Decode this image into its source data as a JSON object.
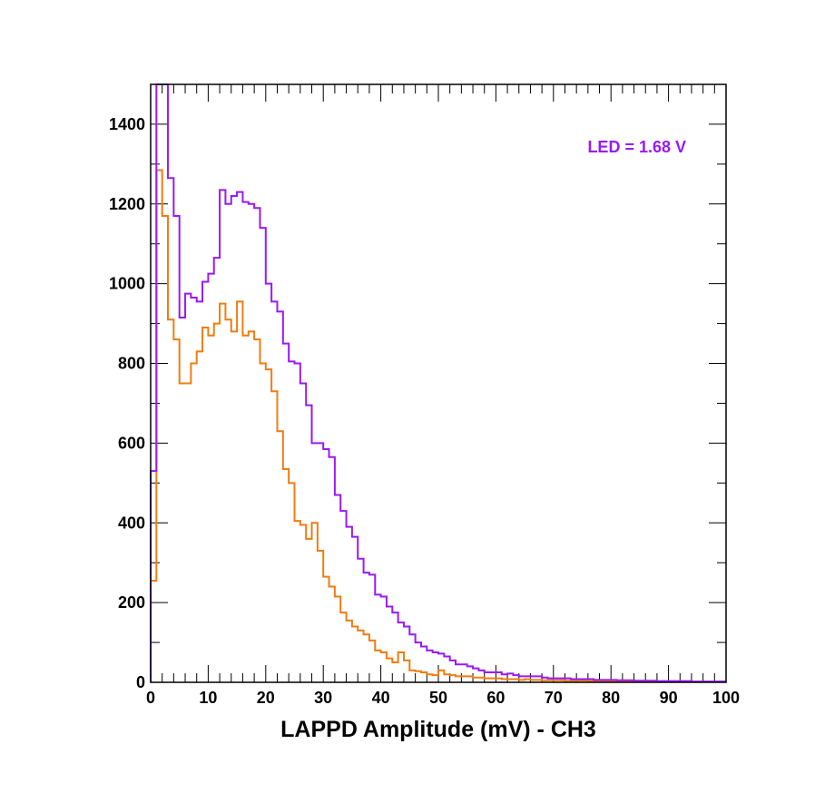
{
  "chart_data": {
    "type": "histogram",
    "title": "",
    "xlabel": "LAPPD Amplitude (mV) - CH3",
    "ylabel": "",
    "xlim": [
      0,
      100
    ],
    "ylim": [
      0,
      1500
    ],
    "bin_width": 1,
    "x_ticks": [
      0,
      10,
      20,
      30,
      40,
      50,
      60,
      70,
      80,
      90,
      100
    ],
    "x_tick_labels": [
      "0",
      "10",
      "20",
      "30",
      "40",
      "50",
      "60",
      "70",
      "80",
      "90",
      "100"
    ],
    "y_ticks": [
      0,
      200,
      400,
      600,
      800,
      1000,
      1200,
      1400
    ],
    "y_tick_labels": [
      "0",
      "200",
      "400",
      "600",
      "800",
      "1000",
      "1200",
      "1400"
    ],
    "annotation": {
      "text": "LED = 1.68 V",
      "color": "#9a19f5",
      "position": "top-right"
    },
    "series": [
      {
        "name": "purple",
        "color": "#9a19f5",
        "values": [
          530,
          1500,
          1500,
          1265,
          1170,
          915,
          975,
          965,
          955,
          1005,
          1025,
          1065,
          1235,
          1200,
          1220,
          1230,
          1205,
          1200,
          1190,
          1140,
          1000,
          955,
          930,
          850,
          805,
          800,
          750,
          695,
          600,
          600,
          585,
          565,
          470,
          430,
          390,
          365,
          310,
          275,
          270,
          220,
          215,
          190,
          175,
          150,
          140,
          120,
          100,
          90,
          80,
          75,
          72,
          65,
          55,
          45,
          45,
          40,
          35,
          30,
          25,
          25,
          25,
          20,
          22,
          18,
          15,
          15,
          15,
          15,
          12,
          10,
          10,
          10,
          10,
          8,
          8,
          8,
          8,
          6,
          6,
          6,
          6,
          5,
          5,
          5,
          4,
          4,
          4,
          4,
          3,
          3,
          3,
          3,
          3,
          3,
          2,
          2,
          2,
          2,
          2,
          2
        ]
      },
      {
        "name": "orange",
        "color": "#f07c12",
        "values": [
          255,
          1285,
          1170,
          910,
          860,
          750,
          750,
          800,
          830,
          890,
          870,
          900,
          950,
          910,
          880,
          955,
          870,
          880,
          860,
          800,
          785,
          730,
          630,
          535,
          500,
          405,
          395,
          360,
          400,
          330,
          265,
          240,
          215,
          175,
          155,
          140,
          130,
          120,
          105,
          80,
          75,
          60,
          50,
          75,
          55,
          30,
          28,
          25,
          20,
          18,
          30,
          20,
          18,
          15,
          15,
          15,
          12,
          12,
          10,
          10,
          10,
          8,
          8,
          8,
          6,
          8,
          6,
          6,
          5,
          5,
          5,
          5,
          4,
          4,
          4,
          4,
          3,
          3,
          3,
          3,
          3,
          3,
          3,
          3,
          2,
          2,
          2,
          2,
          2,
          2,
          2,
          2,
          2,
          2,
          1,
          1,
          1,
          1,
          1,
          1
        ]
      }
    ]
  }
}
